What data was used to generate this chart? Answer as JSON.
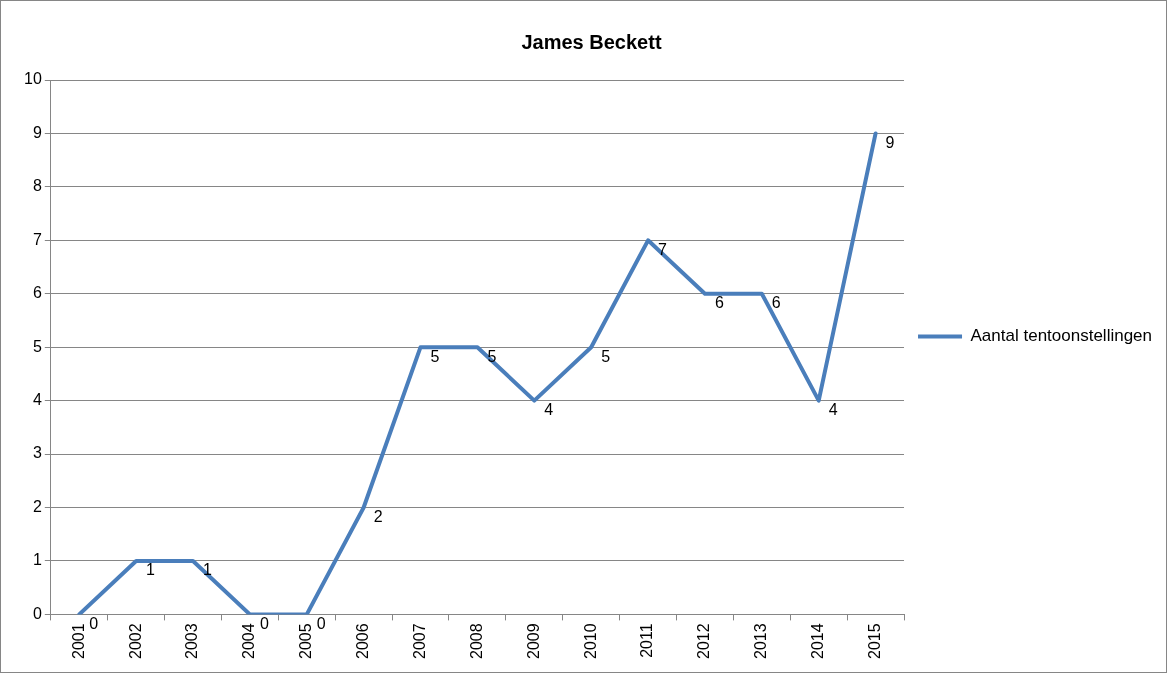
{
  "chart_data": {
    "type": "line",
    "title": "James Beckett",
    "categories": [
      "2001",
      "2002",
      "2003",
      "2004",
      "2005",
      "2006",
      "2007",
      "2008",
      "2009",
      "2010",
      "2011",
      "2012",
      "2013",
      "2014",
      "2015"
    ],
    "series": [
      {
        "name": "Aantal tentoonstellingen",
        "color": "#4a7ebb",
        "values": [
          0,
          1,
          1,
          0,
          0,
          2,
          5,
          5,
          4,
          5,
          7,
          6,
          6,
          4,
          9
        ]
      }
    ],
    "ylim": [
      0,
      10
    ],
    "yticks": [
      0,
      1,
      2,
      3,
      4,
      5,
      6,
      7,
      8,
      9,
      10
    ],
    "grid": "y",
    "legend": "right",
    "marker": "none",
    "line_style": "solid",
    "data_labels": true
  }
}
